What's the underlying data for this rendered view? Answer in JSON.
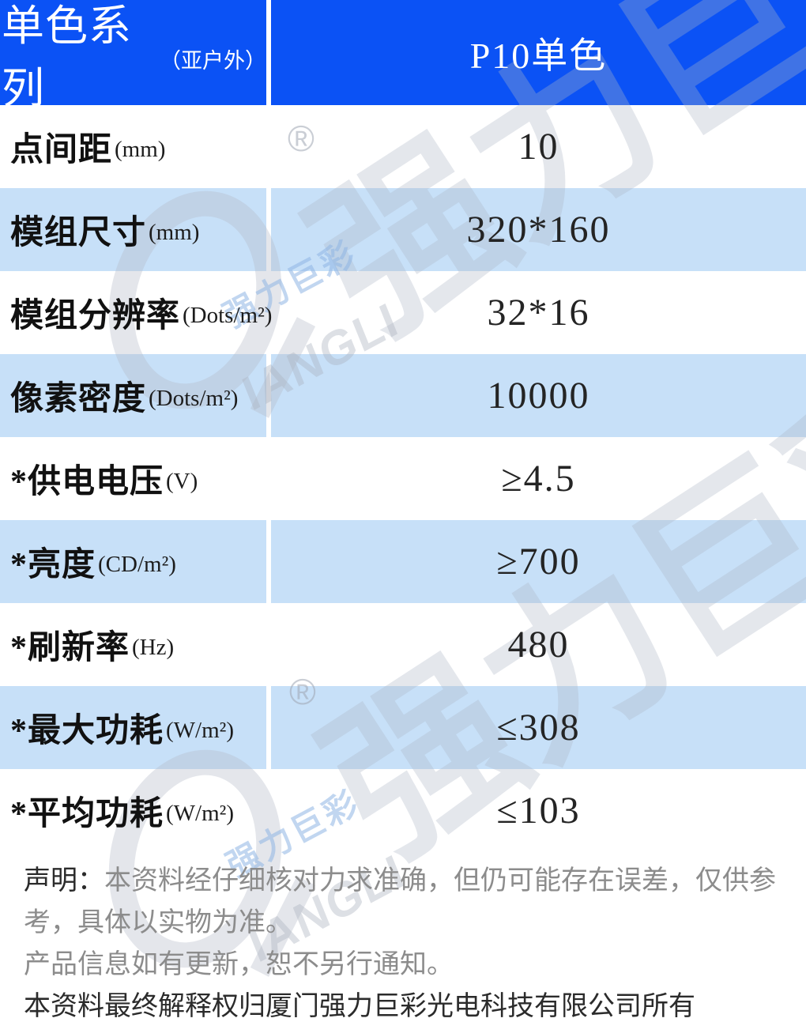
{
  "header": {
    "series_title": "单色系列",
    "series_subtitle": "（亚户外）",
    "product": "P10单色"
  },
  "table": {
    "rows": [
      {
        "label": "点间距",
        "unit": "(mm)",
        "value": "10"
      },
      {
        "label": "模组尺寸",
        "unit": "(mm)",
        "value": "320*160"
      },
      {
        "label": "模组分辨率",
        "unit": "(Dots/m²)",
        "value": "32*16"
      },
      {
        "label": "像素密度",
        "unit": "(Dots/m²)",
        "value": "10000"
      },
      {
        "label": "*供电电压",
        "unit": "(V)",
        "value": "≥4.5"
      },
      {
        "label": "*亮度",
        "unit": "(CD/m²)",
        "value": "≥700"
      },
      {
        "label": "*刷新率",
        "unit": "(Hz)",
        "value": "480"
      },
      {
        "label": "*最大功耗",
        "unit": "(W/m²)",
        "value": "≤308"
      },
      {
        "label": "*平均功耗",
        "unit": "(W/m²)",
        "value": "≤103"
      }
    ]
  },
  "footer": {
    "disclaimer_label": "声明：",
    "disclaimer_body": "本资料经仔细核对力求准确，但仍可能存在误差，仅供参考，具体以实物为准。",
    "update_note": "产品信息如有更新，恕不另行通知。",
    "rights": "本资料最终解释权归厦门强力巨彩光电科技有限公司所有"
  },
  "watermark": {
    "brand_cn": "强力巨彩",
    "brand_en_partial": "IANGLI",
    "registered": "®"
  },
  "colors": {
    "header_blue": "#0B52F5",
    "row_light_blue": "#C7E0F8",
    "footer_gray": "#8C8C8C"
  }
}
